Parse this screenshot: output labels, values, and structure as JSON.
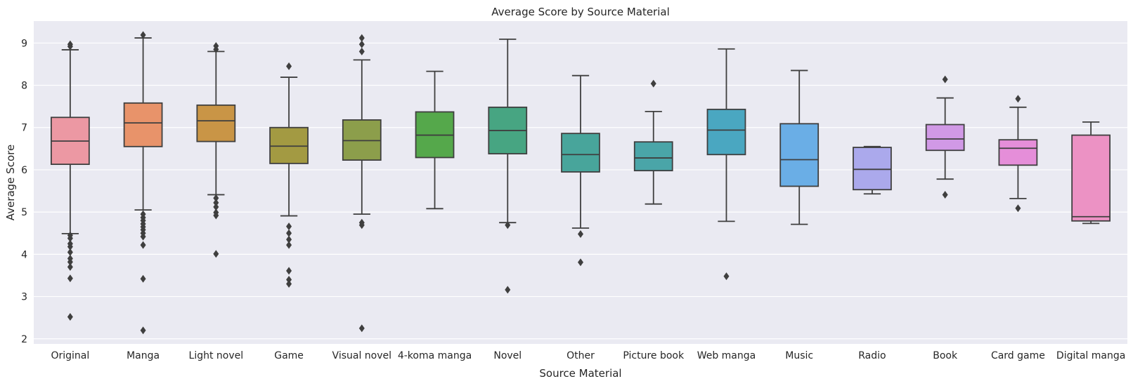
{
  "chart_data": {
    "type": "box",
    "title": "Average Score by Source Material",
    "xlabel": "Source Material",
    "ylabel": "Average Score",
    "ylim": [
      1.88,
      9.52
    ],
    "yticks": [
      2,
      3,
      4,
      5,
      6,
      7,
      8,
      9
    ],
    "grid": true,
    "categories": [
      {
        "name": "Original",
        "color": "#ec98a3",
        "whisker_low": 4.49,
        "q1": 6.13,
        "median": 6.68,
        "q3": 7.24,
        "whisker_high": 8.84,
        "outliers": [
          8.92,
          8.97,
          4.45,
          4.38,
          4.25,
          4.18,
          4.05,
          3.9,
          3.82,
          3.7,
          3.43,
          2.52
        ]
      },
      {
        "name": "Manga",
        "color": "#e8936a",
        "whisker_low": 5.05,
        "q1": 6.55,
        "median": 7.11,
        "q3": 7.58,
        "whisker_high": 9.12,
        "outliers": [
          9.19,
          4.95,
          4.87,
          4.8,
          4.72,
          4.65,
          4.58,
          4.5,
          4.42,
          4.22,
          3.42,
          2.2
        ]
      },
      {
        "name": "Light novel",
        "color": "#c99546",
        "whisker_low": 5.41,
        "q1": 6.67,
        "median": 7.16,
        "q3": 7.53,
        "whisker_high": 8.8,
        "outliers": [
          8.85,
          8.93,
          5.33,
          5.22,
          5.12,
          4.99,
          4.92,
          4.01
        ]
      },
      {
        "name": "Game",
        "color": "#a39a42",
        "whisker_low": 4.91,
        "q1": 6.15,
        "median": 6.56,
        "q3": 7.0,
        "whisker_high": 8.19,
        "outliers": [
          8.45,
          4.66,
          4.5,
          4.35,
          4.22,
          3.61,
          3.4,
          3.3
        ]
      },
      {
        "name": "Visual novel",
        "color": "#8c9e4b",
        "whisker_low": 4.95,
        "q1": 6.23,
        "median": 6.69,
        "q3": 7.18,
        "whisker_high": 8.6,
        "outliers": [
          8.8,
          8.97,
          9.12,
          4.75,
          4.69,
          2.25
        ]
      },
      {
        "name": "4-koma manga",
        "color": "#55a84b",
        "whisker_low": 5.08,
        "q1": 6.29,
        "median": 6.82,
        "q3": 7.37,
        "whisker_high": 8.33,
        "outliers": []
      },
      {
        "name": "Novel",
        "color": "#47a582",
        "whisker_low": 4.75,
        "q1": 6.38,
        "median": 6.93,
        "q3": 7.48,
        "whisker_high": 9.09,
        "outliers": [
          4.69,
          3.16
        ]
      },
      {
        "name": "Other",
        "color": "#48a59b",
        "whisker_low": 4.62,
        "q1": 5.95,
        "median": 6.36,
        "q3": 6.86,
        "whisker_high": 8.23,
        "outliers": [
          4.48,
          3.81
        ]
      },
      {
        "name": "Picture book",
        "color": "#4aa5a8",
        "whisker_low": 5.19,
        "q1": 5.98,
        "median": 6.28,
        "q3": 6.66,
        "whisker_high": 7.38,
        "outliers": [
          8.04
        ]
      },
      {
        "name": "Web manga",
        "color": "#4aa7c1",
        "whisker_low": 4.78,
        "q1": 6.36,
        "median": 6.94,
        "q3": 7.43,
        "whisker_high": 8.86,
        "outliers": [
          3.48
        ]
      },
      {
        "name": "Music",
        "color": "#6aaee6",
        "whisker_low": 4.71,
        "q1": 5.61,
        "median": 6.24,
        "q3": 7.09,
        "whisker_high": 8.35,
        "outliers": []
      },
      {
        "name": "Radio",
        "color": "#aba9ec",
        "whisker_low": 5.43,
        "q1": 5.53,
        "median": 6.01,
        "q3": 6.53,
        "whisker_high": 6.55,
        "outliers": []
      },
      {
        "name": "Book",
        "color": "#d199e6",
        "whisker_low": 5.78,
        "q1": 6.46,
        "median": 6.73,
        "q3": 7.07,
        "whisker_high": 7.7,
        "outliers": [
          8.14,
          5.41
        ]
      },
      {
        "name": "Card game",
        "color": "#e58ed9",
        "whisker_low": 5.32,
        "q1": 6.11,
        "median": 6.51,
        "q3": 6.71,
        "whisker_high": 7.48,
        "outliers": [
          7.68,
          5.09
        ]
      },
      {
        "name": "Digital manga",
        "color": "#ec92c4",
        "whisker_low": 4.73,
        "q1": 4.79,
        "median": 4.89,
        "q3": 6.82,
        "whisker_high": 7.13,
        "outliers": []
      }
    ]
  }
}
